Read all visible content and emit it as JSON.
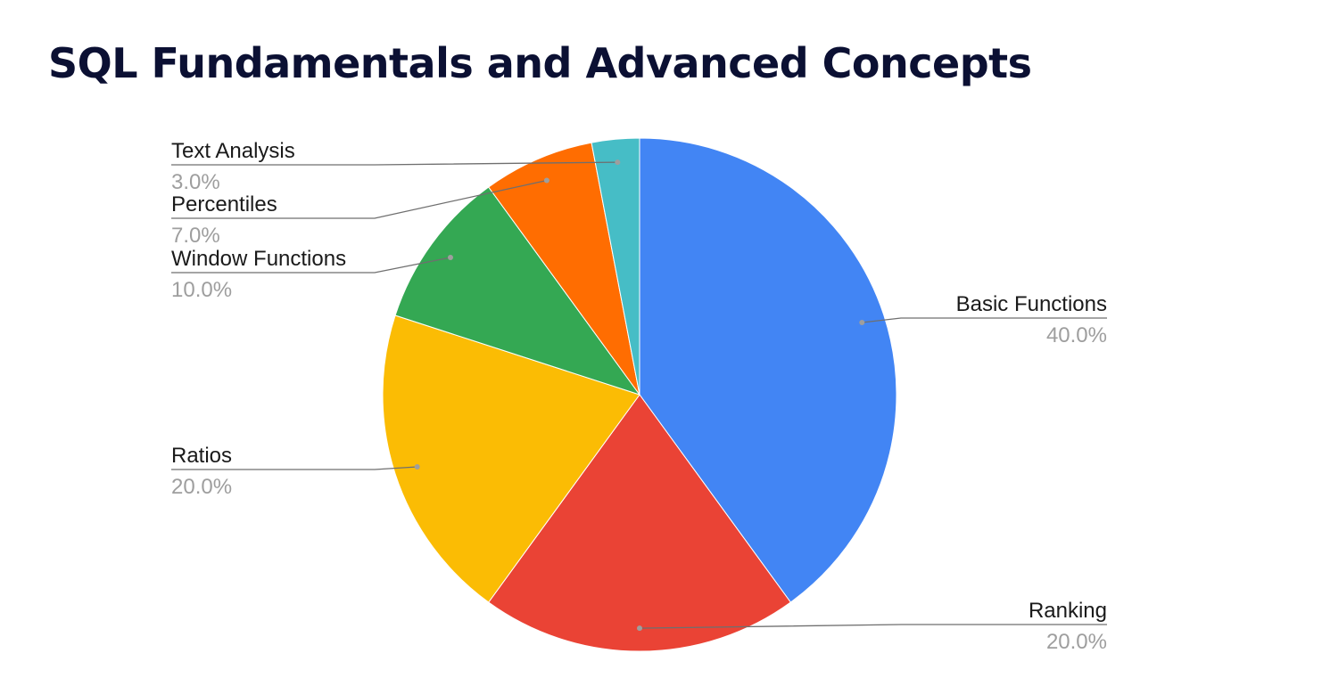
{
  "page": {
    "title": "SQL Fundamentals and Advanced Concepts"
  },
  "chart_data": {
    "type": "pie",
    "title": "",
    "slices": [
      {
        "label": "Basic Functions",
        "value": 40.0,
        "percent_label": "40.0%",
        "color": "#4285f4"
      },
      {
        "label": "Ranking",
        "value": 20.0,
        "percent_label": "20.0%",
        "color": "#ea4335"
      },
      {
        "label": "Ratios",
        "value": 20.0,
        "percent_label": "20.0%",
        "color": "#fbbc04"
      },
      {
        "label": "Window Functions",
        "value": 10.0,
        "percent_label": "10.0%",
        "color": "#34a853"
      },
      {
        "label": "Percentiles",
        "value": 7.0,
        "percent_label": "7.0%",
        "color": "#ff6d01"
      },
      {
        "label": "Text Analysis",
        "value": 3.0,
        "percent_label": "3.0%",
        "color": "#46bdc6"
      }
    ],
    "start_angle": "12 o'clock",
    "direction": "clockwise",
    "label_style": "callout lines with name and percentage"
  }
}
